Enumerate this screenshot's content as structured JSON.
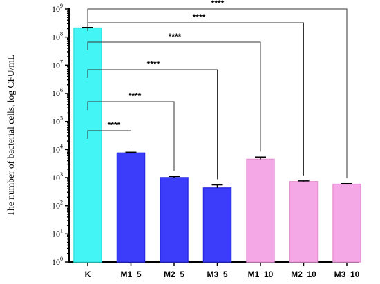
{
  "chart_data": {
    "type": "bar",
    "ylabel": "The number of bacterial cells, log CFU/mL",
    "xlabel": "",
    "yscale": "log",
    "ylim": [
      1,
      1000000000
    ],
    "yticks": [
      {
        "base": "10",
        "exp": "0",
        "value": 1
      },
      {
        "base": "10",
        "exp": "1",
        "value": 10
      },
      {
        "base": "10",
        "exp": "2",
        "value": 100
      },
      {
        "base": "10",
        "exp": "3",
        "value": 1000
      },
      {
        "base": "10",
        "exp": "4",
        "value": 10000
      },
      {
        "base": "10",
        "exp": "5",
        "value": 100000
      },
      {
        "base": "10",
        "exp": "6",
        "value": 1000000
      },
      {
        "base": "10",
        "exp": "7",
        "value": 10000000
      },
      {
        "base": "10",
        "exp": "8",
        "value": 100000000
      },
      {
        "base": "10",
        "exp": "9",
        "value": 1000000000
      }
    ],
    "categories": [
      "K",
      "M1_5",
      "M2_5",
      "M3_5",
      "M1_10",
      "M2_10",
      "M3_10"
    ],
    "values": [
      210000000,
      7500,
      1000,
      430,
      4500,
      720,
      580
    ],
    "errors": [
      10000000,
      500,
      100,
      120,
      900,
      40,
      30
    ],
    "colors": [
      "#44F5F5",
      "#3C3CFB",
      "#3C3CFB",
      "#3C3CFB",
      "#F5A8E6",
      "#F5A8E6",
      "#F5A8E6"
    ],
    "edge_colors": [
      "#2FE3E3",
      "#2A2AE0",
      "#2A2AE0",
      "#2A2AE0",
      "#E894D8",
      "#E894D8",
      "#E894D8"
    ],
    "significance": [
      {
        "from": "K",
        "to": "M1_5",
        "label": "****"
      },
      {
        "from": "K",
        "to": "M2_5",
        "label": "****"
      },
      {
        "from": "K",
        "to": "M3_5",
        "label": "****"
      },
      {
        "from": "K",
        "to": "M1_10",
        "label": "****"
      },
      {
        "from": "K",
        "to": "M2_10",
        "label": "****"
      },
      {
        "from": "K",
        "to": "M3_10",
        "label": "****"
      }
    ],
    "grid": false,
    "legend": "none"
  }
}
